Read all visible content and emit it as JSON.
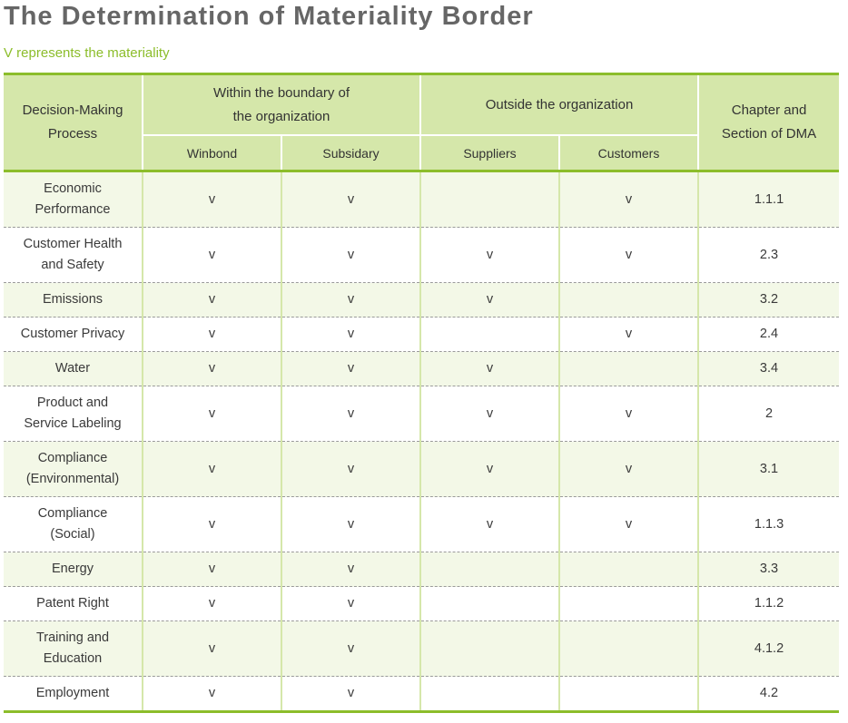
{
  "title": "The Determination of Materiality Border",
  "subtitle": "V represents the materiality",
  "header": {
    "process": "Decision-Making\nProcess",
    "within_group": "Within the boundary of\nthe organization",
    "outside_group": "Outside the organization",
    "chapter": "Chapter and\nSection of DMA",
    "winbond": "Winbond",
    "subsidary": "Subsidary",
    "suppliers": "Suppliers",
    "customers": "Customers"
  },
  "rows": [
    {
      "process": "Economic\nPerformance",
      "winbond": "v",
      "subsidary": "v",
      "suppliers": "",
      "customers": "v",
      "chapter": "1.1.1"
    },
    {
      "process": "Customer Health\nand Safety",
      "winbond": "v",
      "subsidary": "v",
      "suppliers": "v",
      "customers": "v",
      "chapter": "2.3"
    },
    {
      "process": "Emissions",
      "winbond": "v",
      "subsidary": "v",
      "suppliers": "v",
      "customers": "",
      "chapter": "3.2"
    },
    {
      "process": "Customer Privacy",
      "winbond": "v",
      "subsidary": "v",
      "suppliers": "",
      "customers": "v",
      "chapter": "2.4"
    },
    {
      "process": "Water",
      "winbond": "v",
      "subsidary": "v",
      "suppliers": "v",
      "customers": "",
      "chapter": "3.4"
    },
    {
      "process": "Product and\nService Labeling",
      "winbond": "v",
      "subsidary": "v",
      "suppliers": "v",
      "customers": "v",
      "chapter": "2"
    },
    {
      "process": "Compliance\n(Environmental)",
      "winbond": "v",
      "subsidary": "v",
      "suppliers": "v",
      "customers": "v",
      "chapter": "3.1"
    },
    {
      "process": "Compliance\n(Social)",
      "winbond": "v",
      "subsidary": "v",
      "suppliers": "v",
      "customers": "v",
      "chapter": "1.1.3"
    },
    {
      "process": "Energy",
      "winbond": "v",
      "subsidary": "v",
      "suppliers": "",
      "customers": "",
      "chapter": "3.3"
    },
    {
      "process": "Patent Right",
      "winbond": "v",
      "subsidary": "v",
      "suppliers": "",
      "customers": "",
      "chapter": "1.1.2"
    },
    {
      "process": "Training and\nEducation",
      "winbond": "v",
      "subsidary": "v",
      "suppliers": "",
      "customers": "",
      "chapter": "4.1.2"
    },
    {
      "process": "Employment",
      "winbond": "v",
      "subsidary": "v",
      "suppliers": "",
      "customers": "",
      "chapter": "4.2"
    }
  ],
  "colors": {
    "accent_green": "#8cbd2b",
    "header_fill": "#d5e7aa",
    "row_tint": "#f3f8e7",
    "title_gray": "#666666"
  }
}
